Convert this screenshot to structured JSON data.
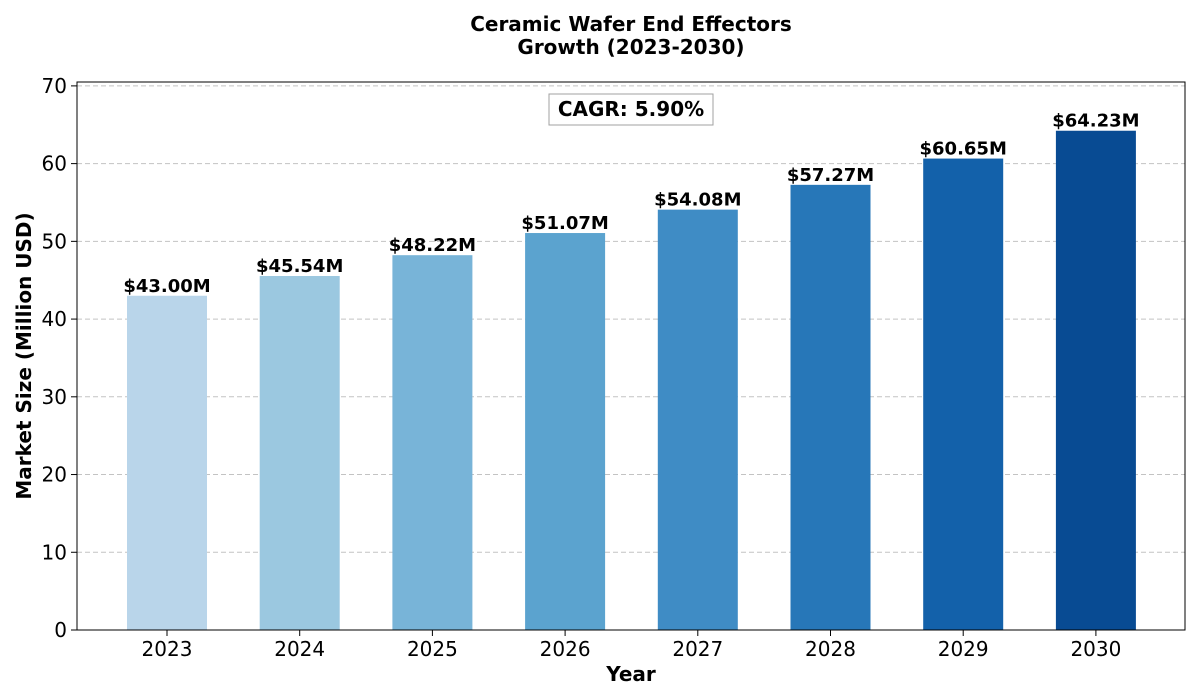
{
  "chart_data": {
    "type": "bar",
    "title_lines": [
      "Ceramic Wafer End Effectors",
      "Growth (2023-2030)"
    ],
    "xlabel": "Year",
    "ylabel": "Market Size (Million USD)",
    "categories": [
      "2023",
      "2024",
      "2025",
      "2026",
      "2027",
      "2028",
      "2029",
      "2030"
    ],
    "values": [
      43.0,
      45.54,
      48.22,
      51.07,
      54.08,
      57.27,
      60.65,
      64.23
    ],
    "data_labels": [
      "$43.00M",
      "$45.54M",
      "$48.22M",
      "$51.07M",
      "$54.08M",
      "$57.27M",
      "$60.65M",
      "$64.23M"
    ],
    "colors": [
      "#b9d5ea",
      "#9bc8e0",
      "#78b4d8",
      "#5ba3cf",
      "#3f8cc5",
      "#2777b8",
      "#1361aa",
      "#084b93"
    ],
    "ylim": [
      0,
      70.5
    ],
    "yticks": [
      0,
      10,
      20,
      30,
      40,
      50,
      60,
      70
    ],
    "grid": true,
    "annotation": "CAGR: 5.90%"
  }
}
